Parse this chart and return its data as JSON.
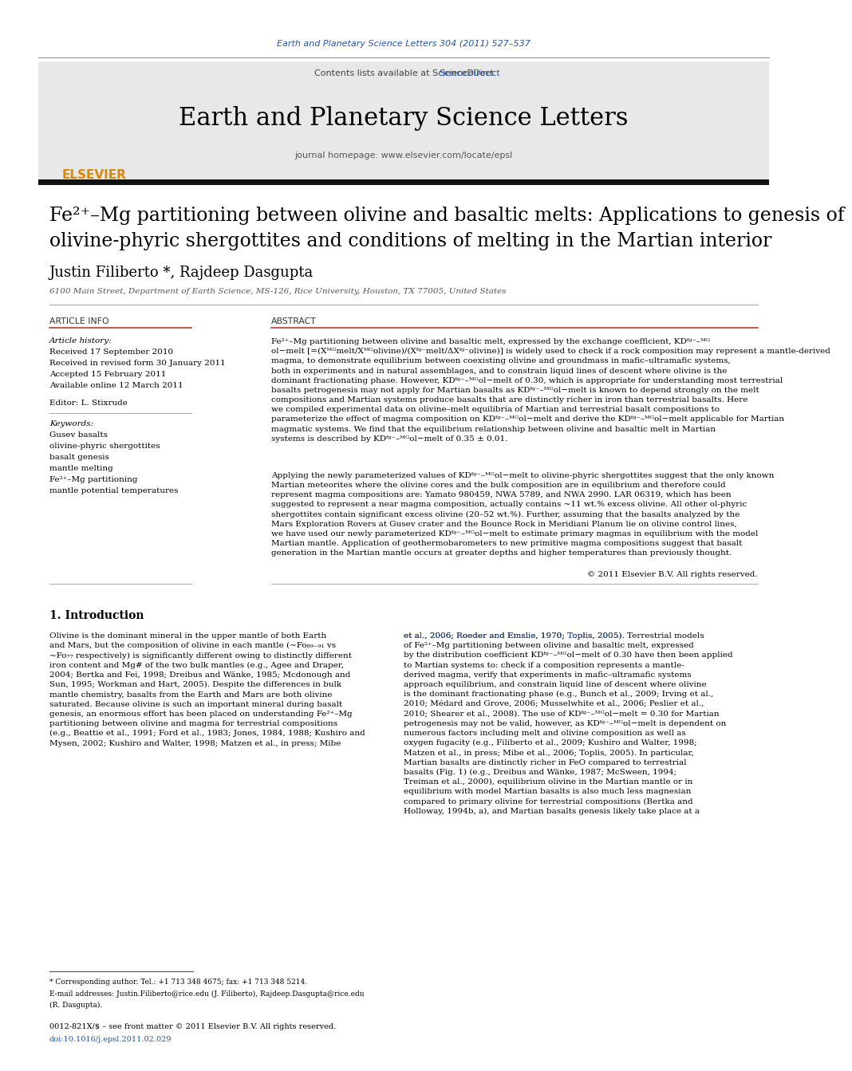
{
  "bg_color": "#ffffff",
  "top_link_text": "Earth and Planetary Science Letters 304 (2011) 527–537",
  "top_link_color": "#2255aa",
  "header_bg": "#e8e8e8",
  "header_contents_text": "Contents lists available at ",
  "header_sciencedirect": "ScienceDirect",
  "header_journal_title": "Earth and Planetary Science Letters",
  "header_homepage_text": "journal homepage: www.elsevier.com/locate/epsl",
  "article_title_line1": "Fe²⁺–Mg partitioning between olivine and basaltic melts: Applications to genesis of",
  "article_title_line2": "olivine-phyric shergottites and conditions of melting in the Martian interior",
  "authors": "Justin Filiberto *, Rajdeep Dasgupta",
  "affiliation": "6100 Main Street, Department of Earth Science, MS-126, Rice University, Houston, TX 77005, United States",
  "section_article_info": "ARTICLE INFO",
  "section_abstract": "ABSTRACT",
  "article_history_label": "Article history:",
  "received": "Received 17 September 2010",
  "revised": "Received in revised form 30 January 2011",
  "accepted": "Accepted 15 February 2011",
  "available": "Available online 12 March 2011",
  "editor_label": "Editor: L. Stixrude",
  "keywords_label": "Keywords:",
  "keyword1": "Gusev basalts",
  "keyword2": "olivine-phyric shergottites",
  "keyword3": "basalt genesis",
  "keyword4": "mantle melting",
  "keyword5": "Fe²⁺–Mg partitioning",
  "keyword6": "mantle potential temperatures",
  "abstract_copyright": "© 2011 Elsevier B.V. All rights reserved.",
  "intro_heading": "1. Introduction",
  "footnote_line1": "* Corresponding author. Tel.: +1 713 348 4675; fax: +1 713 348 5214.",
  "footnote_email": "E-mail addresses: Justin.Filiberto@rice.edu (J. Filiberto), Rajdeep.Dasgupta@rice.edu",
  "footnote_line3": "(R. Dasgupta).",
  "bottom_line1": "0012-821X/$ – see front matter © 2011 Elsevier B.V. All rights reserved.",
  "bottom_line2": "doi:10.1016/j.epsl.2011.02.029",
  "link_color": "#2255aa",
  "text_color": "#000000",
  "divider_color": "#000000",
  "gray_divider": "#999999",
  "orange_color": "#dd8800"
}
